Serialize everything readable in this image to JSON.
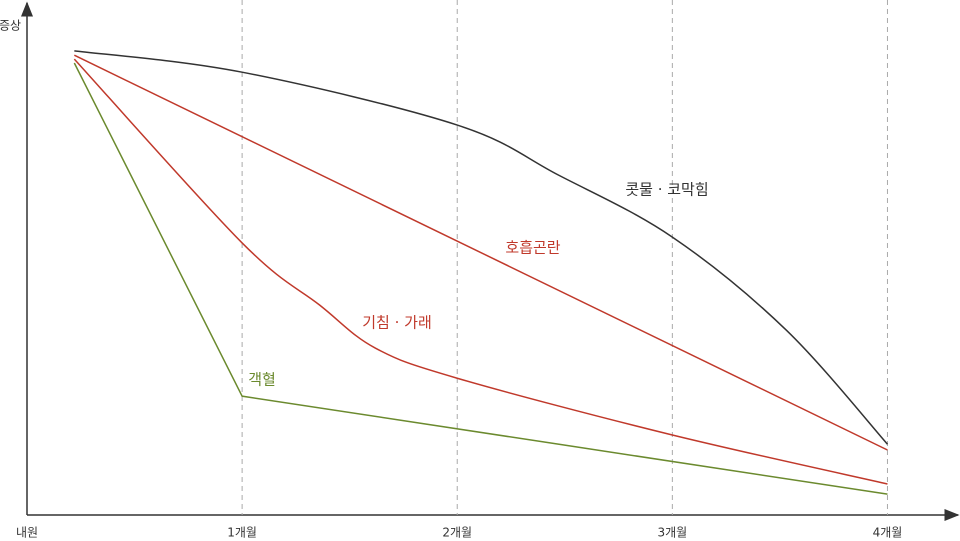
{
  "chart_data": {
    "type": "line",
    "y_label": "증상",
    "xlim": [
      0,
      4.3
    ],
    "ylim": [
      0,
      100
    ],
    "xticks": [
      {
        "value": 0,
        "label": "내원"
      },
      {
        "value": 1,
        "label": "1개월"
      },
      {
        "value": 2,
        "label": "2개월"
      },
      {
        "value": 3,
        "label": "3개월"
      },
      {
        "value": 4,
        "label": "4개월"
      }
    ],
    "grid": true,
    "series": [
      {
        "name": "콧물 · 코막힘",
        "color": "#333333",
        "x": [
          0.22,
          1,
          2,
          2.47,
          3,
          3.53,
          4
        ],
        "values": [
          95.7,
          91.3,
          80.4,
          70.1,
          57.3,
          38.1,
          14.6
        ]
      },
      {
        "name": "호흡곤란",
        "color": "#c0392b",
        "x": [
          0.22,
          4
        ],
        "values": [
          94.8,
          13.4
        ]
      },
      {
        "name": "기침 · 가래",
        "color": "#c0392b",
        "x": [
          0.22,
          1,
          1.36,
          1.62,
          2,
          3,
          4
        ],
        "values": [
          94.0,
          56.1,
          43.3,
          34.4,
          28.2,
          16.5,
          6.4
        ]
      },
      {
        "name": "객혈",
        "color": "#6b8a2e",
        "x": [
          0.22,
          1,
          4
        ],
        "values": [
          93.2,
          24.5,
          4.3
        ]
      }
    ]
  }
}
